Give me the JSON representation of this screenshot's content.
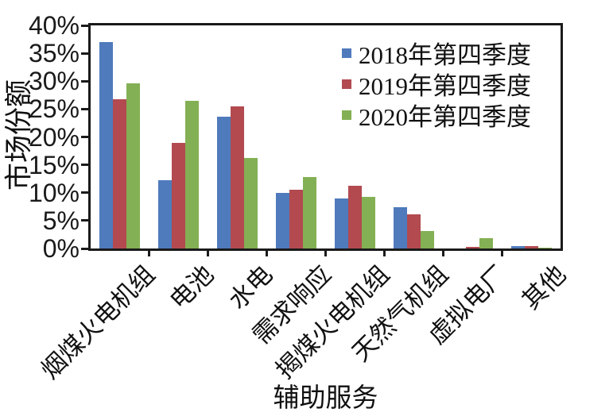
{
  "chart_data": {
    "type": "bar",
    "categories": [
      "烟煤火电机组",
      "电池",
      "水电",
      "需求响应",
      "揭煤火电机组",
      "天然气机组",
      "虚拟电厂",
      "其他"
    ],
    "series": [
      {
        "name": "2018年第四季度",
        "color": "#4F7ABC",
        "values": [
          37.0,
          12.2,
          23.6,
          10.0,
          8.9,
          7.4,
          0.0,
          0.5
        ]
      },
      {
        "name": "2019年第四季度",
        "color": "#B24A50",
        "values": [
          26.7,
          19.0,
          25.5,
          10.5,
          11.2,
          6.1,
          0.3,
          0.4
        ]
      },
      {
        "name": "2020年第四季度",
        "color": "#83B054",
        "values": [
          29.6,
          26.5,
          16.3,
          12.8,
          9.2,
          3.2,
          1.8,
          0.1
        ]
      }
    ],
    "xlabel": "辅助服务",
    "ylabel": "市场份额",
    "ylim": [
      0,
      40
    ],
    "ytick_labels": [
      "0%",
      "5%",
      "10%",
      "15%",
      "20%",
      "25%",
      "30%",
      "35%",
      "40%"
    ],
    "grid": false,
    "legend_position": "inside-top-right",
    "axis_color": "#1A1A1A"
  }
}
